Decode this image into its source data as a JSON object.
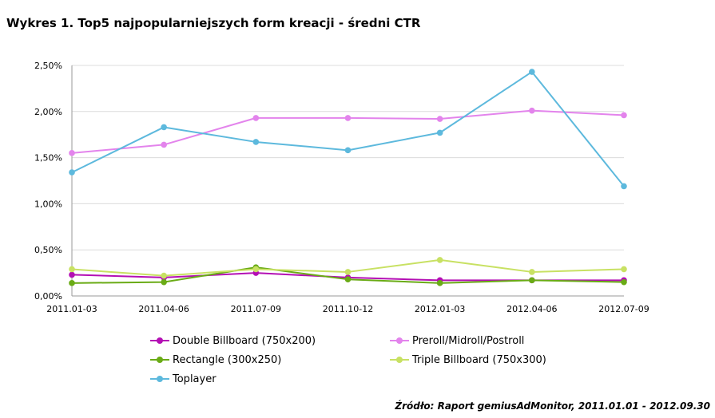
{
  "chart_data": {
    "type": "line",
    "title": "Wykres 1. Top5 najpopularniejszych form kreacji - średni CTR",
    "xlabel": "",
    "ylabel": "",
    "categories": [
      "2011.01-03",
      "2011.04-06",
      "2011.07-09",
      "2011.10-12",
      "2012.01-03",
      "2012.04-06",
      "2012.07-09"
    ],
    "ylim": [
      0,
      2.5
    ],
    "yticks": [
      0,
      0.5,
      1.0,
      1.5,
      2.0,
      2.5
    ],
    "ytick_labels": [
      "0,00%",
      "0,50%",
      "1,00%",
      "1,50%",
      "2,00%",
      "2,50%"
    ],
    "grid": true,
    "legend_position": "bottom",
    "series": [
      {
        "name": "Double Billboard (750x200)",
        "color": "#b40fb4",
        "values": [
          0.23,
          0.2,
          0.25,
          0.2,
          0.17,
          0.17,
          0.17
        ]
      },
      {
        "name": "Preroll/Midroll/Postroll",
        "color": "#e384ec",
        "values": [
          1.55,
          1.64,
          1.93,
          1.93,
          1.92,
          2.01,
          1.96
        ]
      },
      {
        "name": "Rectangle (300x250)",
        "color": "#6aab16",
        "values": [
          0.14,
          0.15,
          0.31,
          0.18,
          0.14,
          0.17,
          0.15
        ]
      },
      {
        "name": "Triple Billboard (750x300)",
        "color": "#c8e163",
        "values": [
          0.29,
          0.22,
          0.29,
          0.26,
          0.39,
          0.26,
          0.29
        ]
      },
      {
        "name": "Toplayer",
        "color": "#5db9dd",
        "values": [
          1.34,
          1.83,
          1.67,
          1.58,
          1.77,
          2.43,
          1.19
        ]
      }
    ],
    "source": "Źródło: Raport gemiusAdMonitor, 2011.01.01 - 2012.09.30"
  }
}
